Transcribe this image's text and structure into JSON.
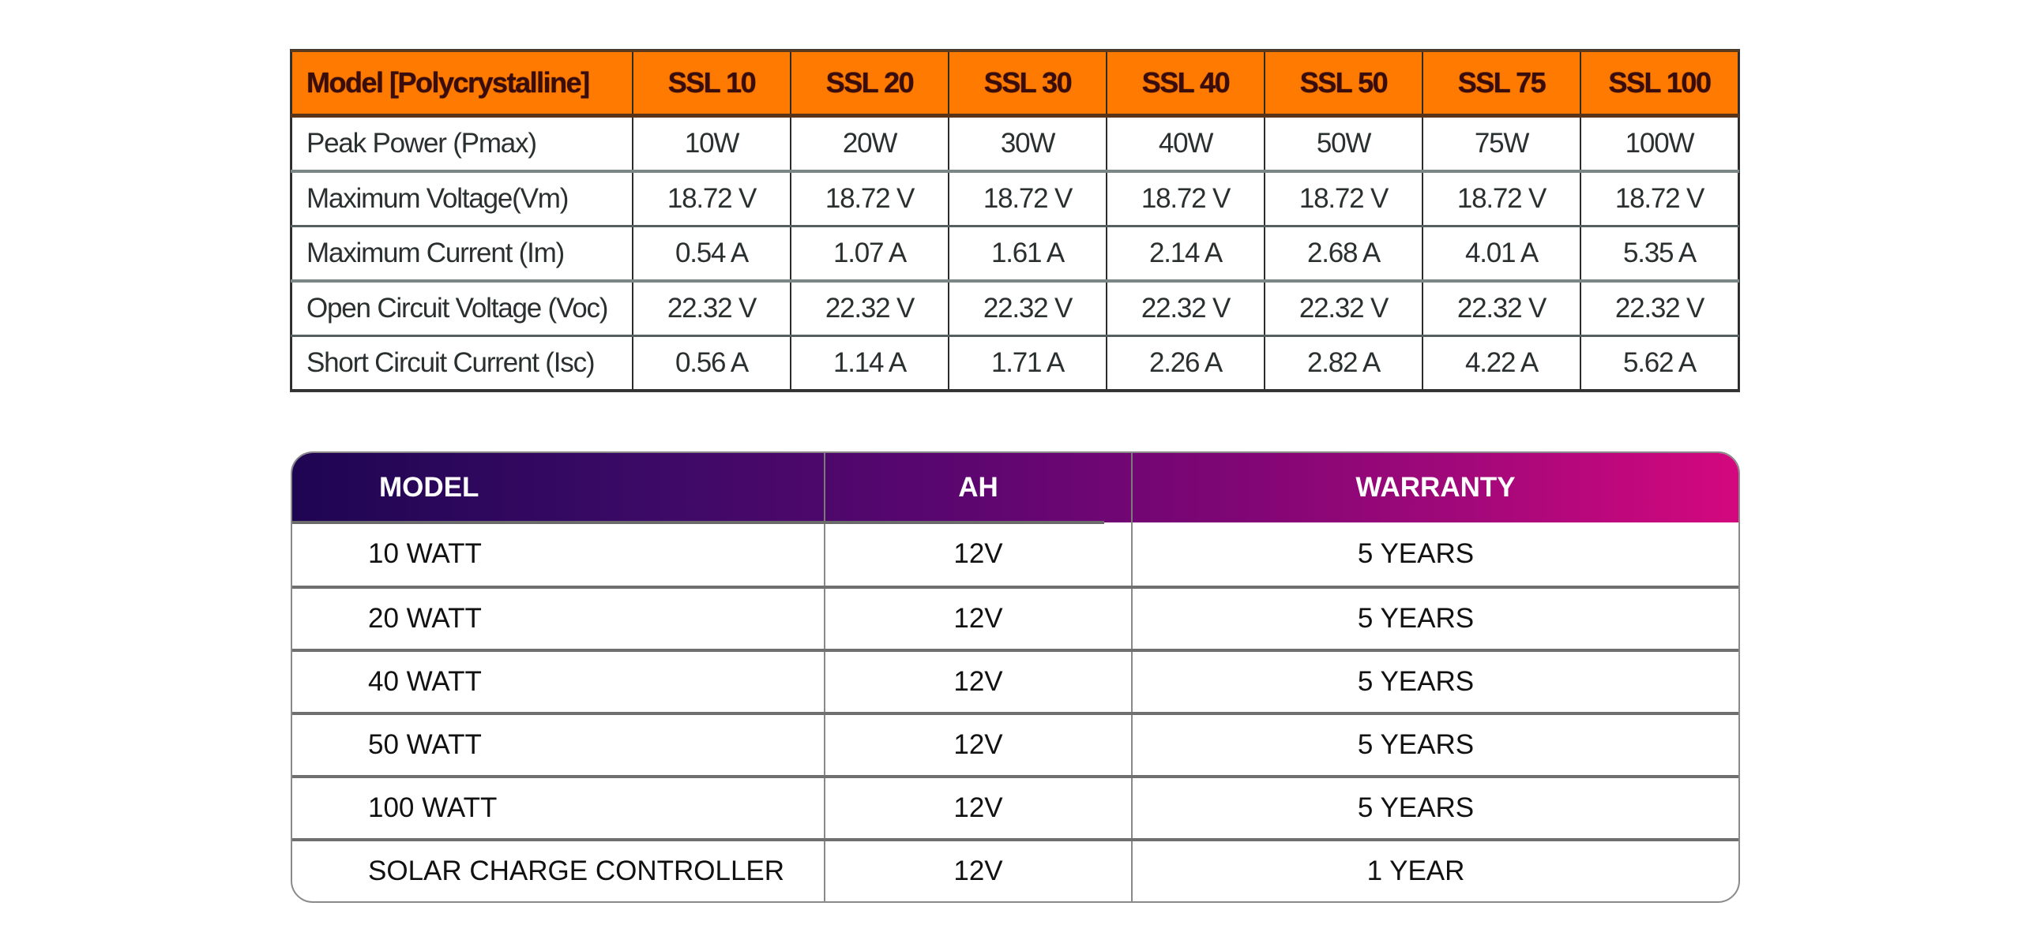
{
  "spec_table": {
    "header": [
      "Model [Polycrystalline]",
      "SSL 10",
      "SSL 20",
      "SSL 30",
      "SSL 40",
      "SSL 50",
      "SSL 75",
      "SSL 100"
    ],
    "rows": [
      [
        "Peak Power (Pmax)",
        "10W",
        "20W",
        "30W",
        "40W",
        "50W",
        "75W",
        "100W"
      ],
      [
        "Maximum Voltage(Vm)",
        "18.72 V",
        "18.72 V",
        "18.72 V",
        "18.72 V",
        "18.72 V",
        "18.72 V",
        "18.72 V"
      ],
      [
        "Maximum Current (Im)",
        "0.54 A",
        "1.07 A",
        "1.61 A",
        "2.14 A",
        "2.68 A",
        "4.01 A",
        "5.35 A"
      ],
      [
        "Open Circuit Voltage (Voc)",
        "22.32 V",
        "22.32 V",
        "22.32 V",
        "22.32 V",
        "22.32 V",
        "22.32 V",
        "22.32 V"
      ],
      [
        "Short Circuit Current (Isc)",
        "0.56 A",
        "1.14 A",
        "1.71 A",
        "2.26 A",
        "2.82 A",
        "4.22 A",
        "5.62 A"
      ]
    ],
    "colors": {
      "header_bg": "#ff7a00",
      "header_text": "#3a0d0d"
    }
  },
  "warranty_table": {
    "header": {
      "model": "MODEL",
      "ah": "AH",
      "warranty": "WARRANTY"
    },
    "rows": [
      {
        "model": "10 WATT",
        "ah": "12V",
        "warranty": "5 YEARS"
      },
      {
        "model": "20 WATT",
        "ah": "12V",
        "warranty": "5 YEARS"
      },
      {
        "model": "40 WATT",
        "ah": "12V",
        "warranty": "5 YEARS"
      },
      {
        "model": "50 WATT",
        "ah": "12V",
        "warranty": "5 YEARS"
      },
      {
        "model": "100 WATT",
        "ah": "12V",
        "warranty": "5 YEARS"
      },
      {
        "model": "SOLAR CHARGE CONTROLLER",
        "ah": "12V",
        "warranty": "1 YEAR"
      }
    ],
    "colors": {
      "gradient_start": "#1e0552",
      "gradient_end": "#d4087e"
    }
  }
}
